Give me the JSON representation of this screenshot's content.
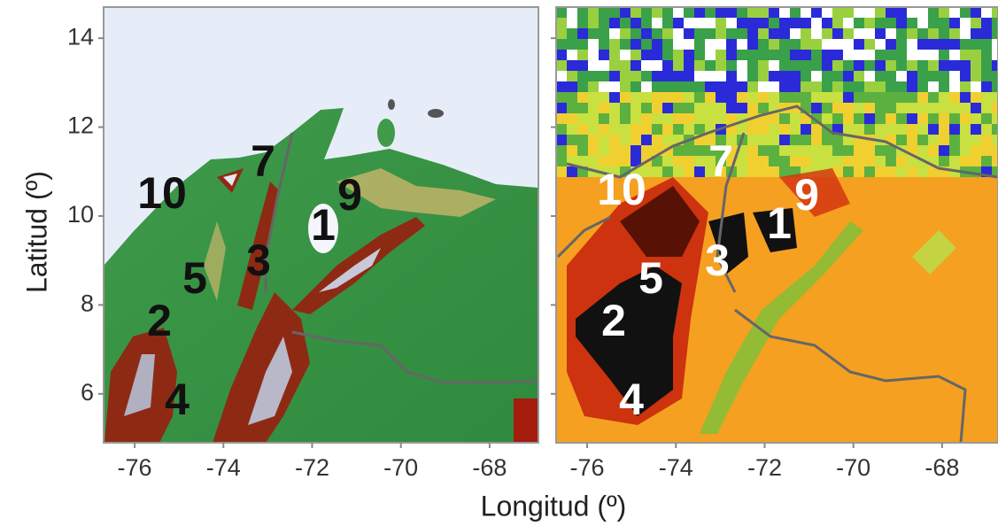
{
  "y_title": "Latitud (º)",
  "x_title": "Longitud (º)",
  "xlim": [
    -76.7,
    -66.9
  ],
  "ylim": [
    4.9,
    14.7
  ],
  "yticks": [
    6,
    8,
    10,
    12,
    14
  ],
  "panels": [
    {
      "xticks": [
        -76,
        -74,
        -72,
        -70,
        -68
      ],
      "labels": [
        "10",
        "7",
        "9",
        "1",
        "3",
        "5",
        "2",
        "4"
      ]
    },
    {
      "xticks": [
        -76,
        -74,
        -72,
        -70,
        -68
      ],
      "labels": [
        "10",
        "7",
        "9",
        "1",
        "3",
        "5",
        "2",
        "4"
      ]
    }
  ]
}
